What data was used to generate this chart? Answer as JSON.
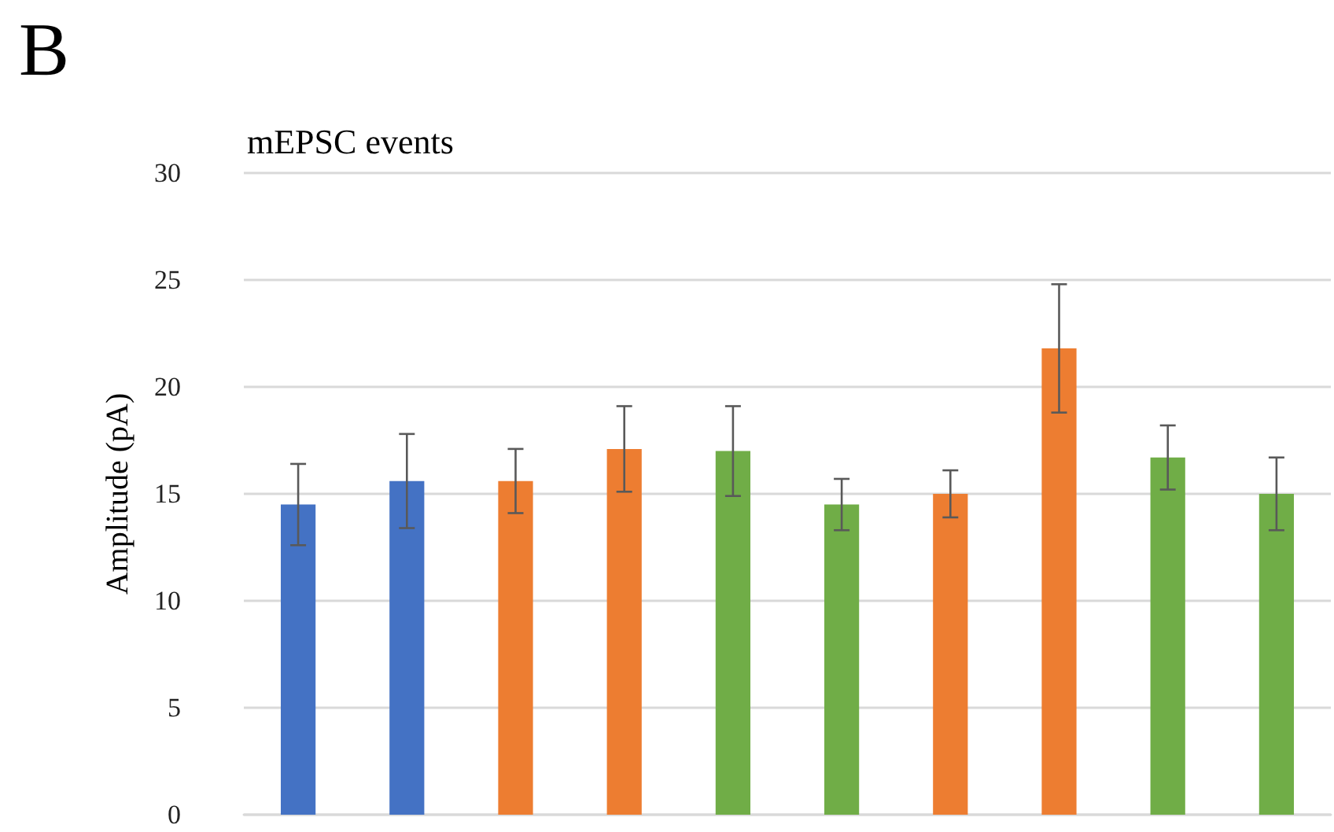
{
  "chart_data": {
    "type": "bar",
    "title": "mEPSC events",
    "ylabel": "Amplitude (pA)",
    "annotations": [
      "B"
    ],
    "categories": [
      null,
      null,
      null,
      null,
      null,
      null,
      null,
      null,
      null,
      null
    ],
    "values": [
      14.5,
      15.6,
      15.6,
      17.1,
      17.0,
      14.5,
      15.0,
      21.8,
      16.7,
      15.0
    ],
    "errors": [
      1.9,
      2.2,
      1.5,
      2.0,
      2.1,
      1.2,
      1.1,
      3.0,
      1.5,
      1.7
    ],
    "colors": [
      "#4472c4",
      "#4472c4",
      "#ed7d31",
      "#ed7d31",
      "#70ad47",
      "#70ad47",
      "#ed7d31",
      "#ed7d31",
      "#70ad47",
      "#70ad47"
    ],
    "ylim": [
      0,
      30
    ],
    "yticks": [
      0,
      5,
      10,
      15,
      20,
      25,
      30
    ],
    "grid": "y"
  }
}
